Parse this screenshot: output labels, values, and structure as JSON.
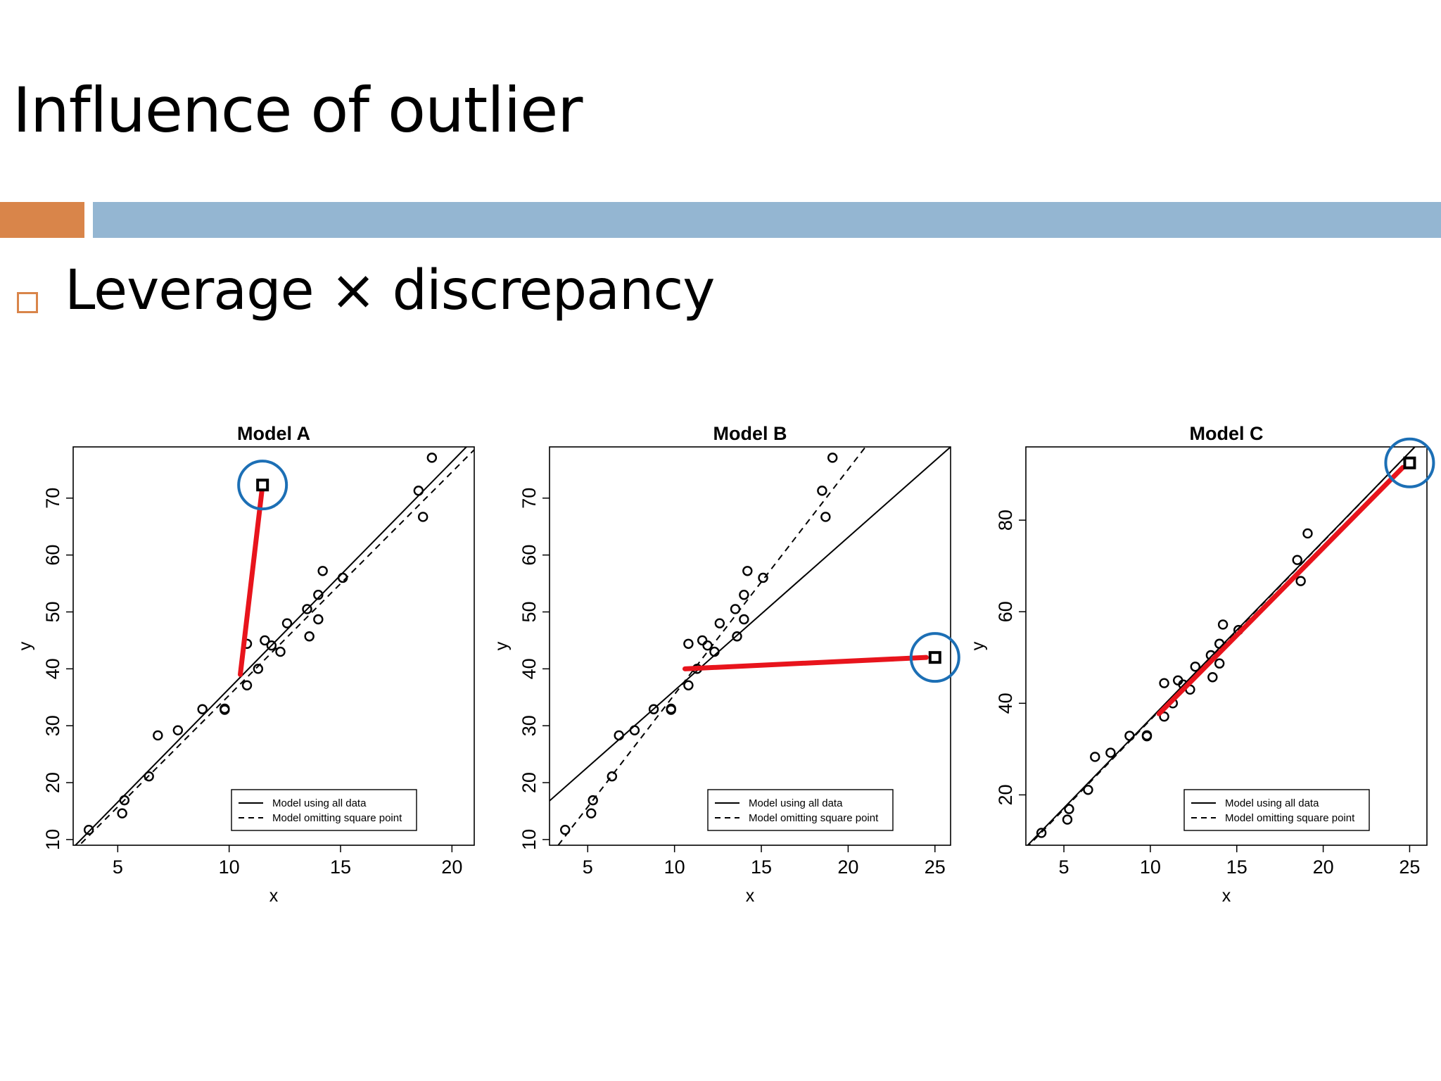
{
  "slide": {
    "title": "Influence of outlier",
    "bullet": "Leverage × discrepancy"
  },
  "colors": {
    "accent_orange": "#d9854a",
    "accent_blue": "#94b6d2",
    "highlight_red": "#e8141c",
    "highlight_circle": "#1c6fb5"
  },
  "chart_data": [
    {
      "type": "scatter",
      "title": "Model A",
      "xlabel": "x",
      "ylabel": "y",
      "xlim": [
        3,
        21
      ],
      "ylim": [
        9,
        79
      ],
      "xticks": [
        5,
        10,
        15,
        20
      ],
      "yticks": [
        10,
        20,
        30,
        40,
        50,
        60,
        70
      ],
      "legend_position": "bottom-right",
      "legend": [
        "Model using all data",
        "Model omitting square point"
      ],
      "points": [
        [
          3.7,
          11.7
        ],
        [
          5.2,
          14.6
        ],
        [
          5.3,
          16.9
        ],
        [
          6.4,
          21.1
        ],
        [
          6.8,
          28.3
        ],
        [
          7.7,
          29.2
        ],
        [
          8.8,
          32.9
        ],
        [
          9.8,
          32.8
        ],
        [
          9.8,
          33.0
        ],
        [
          10.8,
          37.1
        ],
        [
          10.8,
          44.4
        ],
        [
          11.3,
          40.0
        ],
        [
          11.6,
          45.0
        ],
        [
          11.9,
          44.1
        ],
        [
          12.3,
          43.0
        ],
        [
          12.6,
          48.0
        ],
        [
          13.5,
          50.5
        ],
        [
          13.6,
          45.7
        ],
        [
          14.0,
          53.0
        ],
        [
          14.0,
          48.7
        ],
        [
          14.2,
          57.2
        ],
        [
          15.1,
          56.0
        ],
        [
          18.5,
          71.3
        ],
        [
          18.7,
          66.7
        ],
        [
          19.1,
          77.1
        ]
      ],
      "outlier": [
        11.5,
        72.3
      ],
      "fit_all_data": {
        "x": [
          3.0,
          21.0
        ],
        "y": [
          8.6,
          80.4
        ]
      },
      "fit_omitting_square_point": {
        "x": [
          3.0,
          21.0
        ],
        "y": [
          7.9,
          78.5
        ]
      },
      "residual_segment": {
        "x": [
          10.5,
          11.5
        ],
        "y": [
          39.0,
          72.3
        ]
      }
    },
    {
      "type": "scatter",
      "title": "Model B",
      "xlabel": "x",
      "ylabel": "y",
      "xlim": [
        2.8,
        25.9
      ],
      "ylim": [
        9,
        79
      ],
      "xticks": [
        5,
        10,
        15,
        20,
        25
      ],
      "yticks": [
        10,
        20,
        30,
        40,
        50,
        60,
        70
      ],
      "legend_position": "bottom-right",
      "legend": [
        "Model using all data",
        "Model omitting square point"
      ],
      "points": [
        [
          3.7,
          11.7
        ],
        [
          5.2,
          14.6
        ],
        [
          5.3,
          16.9
        ],
        [
          6.4,
          21.1
        ],
        [
          6.8,
          28.3
        ],
        [
          7.7,
          29.2
        ],
        [
          8.8,
          32.9
        ],
        [
          9.8,
          32.8
        ],
        [
          9.8,
          33.0
        ],
        [
          10.8,
          37.1
        ],
        [
          10.8,
          44.4
        ],
        [
          11.3,
          40.0
        ],
        [
          11.6,
          45.0
        ],
        [
          11.9,
          44.1
        ],
        [
          12.3,
          43.0
        ],
        [
          12.6,
          48.0
        ],
        [
          13.5,
          50.5
        ],
        [
          13.6,
          45.7
        ],
        [
          14.0,
          53.0
        ],
        [
          14.0,
          48.7
        ],
        [
          14.2,
          57.2
        ],
        [
          15.1,
          56.0
        ],
        [
          18.5,
          71.3
        ],
        [
          18.7,
          66.7
        ],
        [
          19.1,
          77.1
        ]
      ],
      "outlier": [
        25.0,
        42.0
      ],
      "fit_all_data": {
        "x": [
          2.8,
          25.9
        ],
        "y": [
          16.8,
          79.0
        ]
      },
      "fit_omitting_square_point": {
        "x": [
          3.3,
          21.0
        ],
        "y": [
          9.0,
          79.0
        ]
      },
      "residual_segment": {
        "x": [
          10.6,
          24.5
        ],
        "y": [
          40.0,
          42.0
        ]
      }
    },
    {
      "type": "scatter",
      "title": "Model C",
      "xlabel": "x",
      "ylabel": "y",
      "xlim": [
        2.8,
        26.0
      ],
      "ylim": [
        9,
        96
      ],
      "xticks": [
        5,
        10,
        15,
        20,
        25
      ],
      "yticks": [
        20,
        40,
        60,
        80
      ],
      "legend_position": "bottom-right",
      "legend": [
        "Model using all data",
        "Model omitting square point"
      ],
      "points": [
        [
          3.7,
          11.7
        ],
        [
          5.2,
          14.6
        ],
        [
          5.3,
          16.9
        ],
        [
          6.4,
          21.1
        ],
        [
          6.8,
          28.3
        ],
        [
          7.7,
          29.2
        ],
        [
          8.8,
          32.9
        ],
        [
          9.8,
          32.8
        ],
        [
          9.8,
          33.0
        ],
        [
          10.8,
          37.1
        ],
        [
          10.8,
          44.4
        ],
        [
          11.3,
          40.0
        ],
        [
          11.6,
          45.0
        ],
        [
          11.9,
          44.1
        ],
        [
          12.3,
          43.0
        ],
        [
          12.6,
          48.0
        ],
        [
          13.5,
          50.5
        ],
        [
          13.6,
          45.7
        ],
        [
          14.0,
          53.0
        ],
        [
          14.0,
          48.7
        ],
        [
          14.2,
          57.2
        ],
        [
          15.1,
          56.0
        ],
        [
          18.5,
          71.3
        ],
        [
          18.7,
          66.7
        ],
        [
          19.1,
          77.1
        ]
      ],
      "outlier": [
        25.0,
        92.5
      ],
      "fit_all_data": {
        "x": [
          2.8,
          25.3
        ],
        "y": [
          8.6,
          96.0
        ]
      },
      "fit_omitting_square_point": {
        "x": [
          2.8,
          25.3
        ],
        "y": [
          8.3,
          96.0
        ]
      },
      "residual_segment": {
        "x": [
          10.5,
          24.6
        ],
        "y": [
          37.7,
          91.5
        ]
      }
    }
  ]
}
